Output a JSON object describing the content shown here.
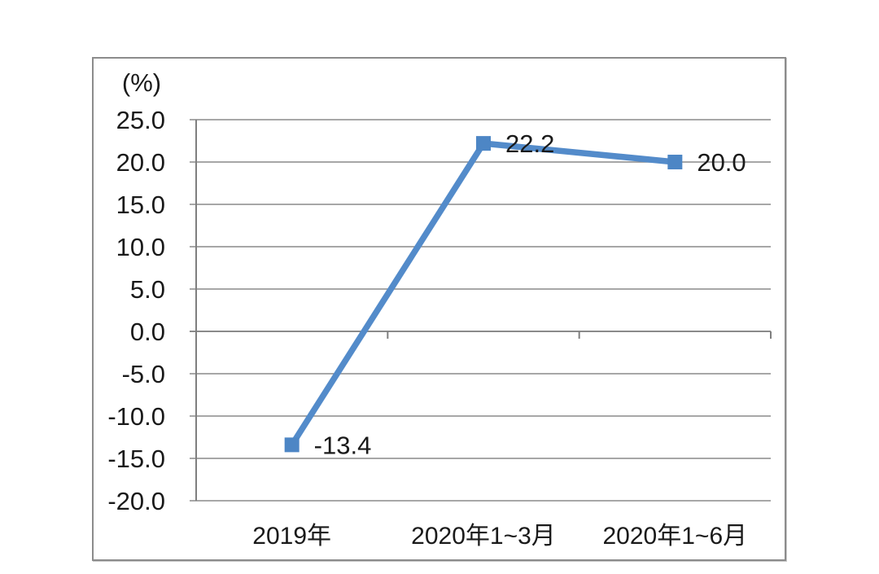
{
  "chart_data": {
    "type": "line",
    "title": "",
    "unit_label": "(%)",
    "categories": [
      "2019年",
      "2020年1~3月",
      "2020年1~6月"
    ],
    "values": [
      -13.4,
      22.2,
      20.0
    ],
    "data_labels": [
      "-13.4",
      "22.2",
      "20.0"
    ],
    "ytick_labels": [
      "25.0",
      "20.0",
      "15.0",
      "10.0",
      "5.0",
      "0.0",
      "-5.0",
      "-10.0",
      "-15.0",
      "-20.0"
    ],
    "ytick_values": [
      25,
      20,
      15,
      10,
      5,
      0,
      -5,
      -10,
      -15,
      -20
    ],
    "ylim": [
      -20,
      25
    ],
    "xlabel": "",
    "ylabel": "(%)",
    "grid": "horizontal",
    "legend": "none",
    "colors": {
      "line": "#538bca",
      "marker": "#4d86c5",
      "grid": "#8a8a8a",
      "axis": "#7f7f7f",
      "text": "#1a1a1a",
      "frame_border": "#8c8c8c"
    }
  }
}
